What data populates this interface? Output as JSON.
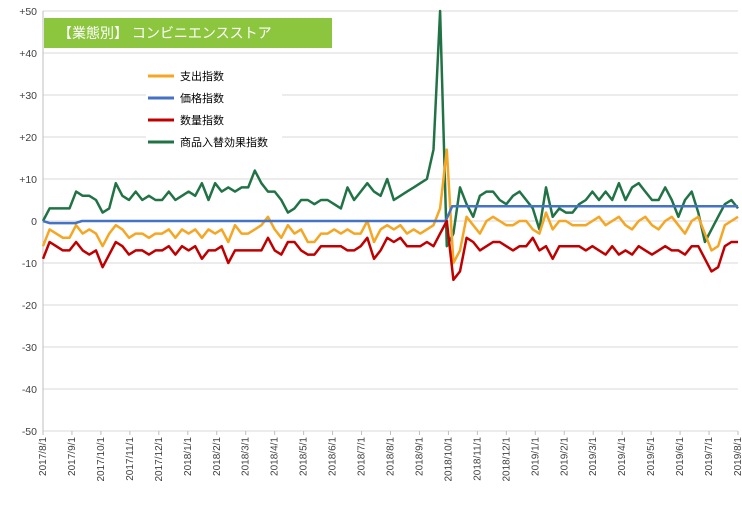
{
  "chart_data": {
    "type": "line",
    "title": "【業態別】 コンビニエンスストア",
    "title_bg": "#8cc63f",
    "ylim": [
      -50,
      50
    ],
    "yticks": [
      50,
      40,
      30,
      20,
      10,
      0,
      -10,
      -20,
      -30,
      -40,
      -50
    ],
    "ytick_labels": [
      "+50",
      "+40",
      "+30",
      "+20",
      "+10",
      "0",
      "-10",
      "-20",
      "-30",
      "-40",
      "-50"
    ],
    "x_labels": [
      "2017/8/1",
      "2017/9/1",
      "2017/10/1",
      "2017/11/1",
      "2017/12/1",
      "2018/1/1",
      "2018/2/1",
      "2018/3/1",
      "2018/4/1",
      "2018/5/1",
      "2018/6/1",
      "2018/7/1",
      "2018/8/1",
      "2018/9/1",
      "2018/10/1",
      "2018/11/1",
      "2018/12/1",
      "2019/1/1",
      "2019/2/1",
      "2019/3/1",
      "2019/4/1",
      "2019/5/1",
      "2019/6/1",
      "2019/7/1",
      "2019/8/1"
    ],
    "points_per_month": 4.5,
    "grid": "horizontal",
    "legend_position": "upper-left",
    "series": [
      {
        "name": "支出指数",
        "color": "#f5a623",
        "values": [
          -6,
          -2,
          -3,
          -4,
          -4,
          -1,
          -3,
          -2,
          -3,
          -6,
          -3,
          -1,
          -2,
          -4,
          -3,
          -3,
          -4,
          -3,
          -3,
          -2,
          -4,
          -2,
          -3,
          -2,
          -4,
          -2,
          -3,
          -2,
          -5,
          -1,
          -3,
          -3,
          -2,
          -1,
          1,
          -2,
          -4,
          -1,
          -3,
          -2,
          -5,
          -5,
          -3,
          -3,
          -2,
          -3,
          -2,
          -3,
          -3,
          0,
          -5,
          -2,
          -1,
          -2,
          -1,
          -3,
          -2,
          -3,
          -2,
          -1,
          3,
          17,
          -10,
          -7,
          1,
          -1,
          -3,
          0,
          1,
          0,
          -1,
          -1,
          0,
          0,
          -2,
          -3,
          2,
          -2,
          0,
          0,
          -1,
          -1,
          -1,
          0,
          1,
          -1,
          0,
          1,
          -1,
          -2,
          0,
          1,
          -1,
          -2,
          0,
          1,
          -1,
          -3,
          0,
          1,
          -3,
          -7,
          -6,
          -1,
          0,
          1
        ]
      },
      {
        "name": "価格指数",
        "color": "#4472c4",
        "values": [
          0,
          -0.5,
          -0.5,
          -0.5,
          -0.5,
          -0.5,
          0,
          0,
          0,
          0,
          0,
          0,
          0,
          0,
          0,
          0,
          0,
          0,
          0,
          0,
          0,
          0,
          0,
          0,
          0,
          0,
          0,
          0,
          0,
          0,
          0,
          0,
          0,
          0,
          0,
          0,
          0,
          0,
          0,
          0,
          0,
          0,
          0,
          0,
          0,
          0,
          0,
          0,
          0,
          0,
          0,
          0,
          0,
          0,
          0,
          0,
          0,
          0,
          0,
          0,
          0,
          0,
          0,
          3.5,
          3.5,
          3.5,
          3.5,
          3.5,
          3.5,
          3.5,
          3.5,
          3.5,
          3.5,
          3.5,
          3.5,
          3.5,
          3.5,
          3.5,
          3.5,
          3.5,
          3.5,
          3.5,
          3.5,
          3.5,
          3.5,
          3.5,
          3.5,
          3.5,
          3.5,
          3.5,
          3.5,
          3.5,
          3.5,
          3.5,
          3.5,
          3.5,
          3.5,
          3.5,
          3.5,
          3.5,
          3.5,
          3.5,
          3.5,
          3.5,
          3.5,
          3.5,
          3.5,
          3.5
        ]
      },
      {
        "name": "数量指数",
        "color": "#c00000",
        "values": [
          -9,
          -5,
          -6,
          -7,
          -7,
          -5,
          -7,
          -8,
          -7,
          -11,
          -8,
          -5,
          -6,
          -8,
          -7,
          -7,
          -8,
          -7,
          -7,
          -6,
          -8,
          -6,
          -7,
          -6,
          -9,
          -7,
          -7,
          -6,
          -10,
          -7,
          -7,
          -7,
          -7,
          -7,
          -4,
          -7,
          -8,
          -5,
          -5,
          -7,
          -8,
          -8,
          -6,
          -6,
          -6,
          -6,
          -7,
          -7,
          -6,
          -4,
          -9,
          -7,
          -4,
          -5,
          -4,
          -6,
          -6,
          -6,
          -5,
          -6,
          -3,
          0,
          -14,
          -12,
          -4,
          -5,
          -7,
          -6,
          -5,
          -5,
          -6,
          -7,
          -6,
          -6,
          -4,
          -7,
          -6,
          -9,
          -6,
          -6,
          -6,
          -6,
          -7,
          -6,
          -7,
          -8,
          -6,
          -8,
          -7,
          -8,
          -6,
          -7,
          -8,
          -7,
          -6,
          -7,
          -7,
          -8,
          -6,
          -6,
          -9,
          -12,
          -11,
          -6,
          -5,
          -5
        ]
      },
      {
        "name": "商品入替効果指数",
        "color": "#217346",
        "values": [
          0,
          3,
          3,
          3,
          3,
          7,
          6,
          6,
          5,
          2,
          3,
          9,
          6,
          5,
          7,
          5,
          6,
          5,
          5,
          7,
          5,
          6,
          7,
          6,
          9,
          5,
          9,
          7,
          8,
          7,
          8,
          8,
          12,
          9,
          7,
          7,
          5,
          2,
          3,
          5,
          5,
          4,
          5,
          5,
          4,
          3,
          8,
          5,
          7,
          9,
          7,
          6,
          10,
          5,
          6,
          7,
          8,
          9,
          10,
          17,
          50,
          -6,
          -3,
          8,
          4,
          1,
          6,
          7,
          7,
          5,
          4,
          6,
          7,
          5,
          3,
          -2,
          8,
          1,
          3,
          2,
          2,
          4,
          5,
          7,
          5,
          7,
          5,
          9,
          5,
          8,
          9,
          7,
          5,
          5,
          8,
          5,
          1,
          5,
          7,
          2,
          -5,
          -2,
          1,
          4,
          5,
          3
        ]
      }
    ]
  }
}
